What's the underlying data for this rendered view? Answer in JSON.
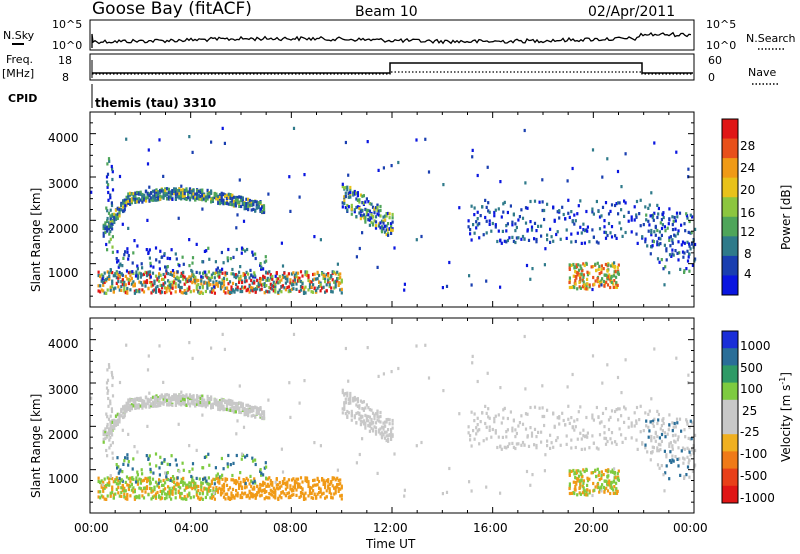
{
  "header": {
    "station": "Goose Bay (fitACF)",
    "beam": "Beam 10",
    "date": "02/Apr/2011"
  },
  "top_panels": {
    "nsky_label": "N.Sky",
    "nsky_ticks": [
      "10^5",
      "10^0"
    ],
    "nsearch_label": "N.Search",
    "nsearch_ticks": [
      "10^5",
      "10^0"
    ],
    "freq_label": "Freq.",
    "freq_unit": "[MHz]",
    "freq_ticks": [
      "18",
      "8"
    ],
    "nave_label": "Nave",
    "nave_ticks": [
      "60",
      "0"
    ],
    "cpid_label": "CPID",
    "cpid_text": "themis (tau) 3310"
  },
  "chart_data": [
    {
      "type": "heatmap",
      "name": "power-panel",
      "ylabel": "Slant Range [km]",
      "yticks": [
        "1000",
        "2000",
        "3000",
        "4000"
      ],
      "colorbar": {
        "label": "Power [dB]",
        "ticks": [
          "4",
          "8",
          "12",
          "16",
          "20",
          "24",
          "28"
        ],
        "colors": [
          "#0a16e0",
          "#1a3fb0",
          "#2f7a8a",
          "#4fa55a",
          "#8cc63f",
          "#e8c21a",
          "#f09a16",
          "#e8501a",
          "#e01616"
        ]
      },
      "clusters": [
        {
          "x": [
            0,
            6.9
          ],
          "y": [
            1300,
            2900
          ],
          "value": "mixed-high",
          "desc": "arc"
        },
        {
          "x": [
            10,
            12
          ],
          "y": [
            1400,
            2700
          ],
          "value": "mixed"
        },
        {
          "x": [
            0,
            10
          ],
          "y": [
            200,
            800
          ],
          "value": "high"
        },
        {
          "x": [
            15,
            24
          ],
          "y": [
            1200,
            2700
          ],
          "value": "low"
        },
        {
          "x": [
            19,
            21
          ],
          "y": [
            400,
            1000
          ],
          "value": "high"
        }
      ]
    },
    {
      "type": "heatmap",
      "name": "velocity-panel",
      "ylabel": "Slant Range [km]",
      "yticks": [
        "1000",
        "2000",
        "3000",
        "4000"
      ],
      "colorbar": {
        "label": "Velocity [m s",
        "label_sup": "-1",
        "label_end": "]",
        "ticks": [
          "1000",
          "500",
          "100",
          "25",
          "-25",
          "-100",
          "-500",
          "-1000"
        ],
        "colors": [
          "#1a2ed8",
          "#2a6e98",
          "#2f9a66",
          "#7ecb40",
          "#c8c8c8",
          "#c8c8c8",
          "#f0b020",
          "#f07a18",
          "#e8401a",
          "#e01616"
        ]
      },
      "xlabel": "Time UT",
      "xticks": [
        "00:00",
        "04:00",
        "08:00",
        "12:00",
        "16:00",
        "20:00",
        "00:00"
      ],
      "xrange_hours": [
        0,
        24
      ]
    }
  ]
}
